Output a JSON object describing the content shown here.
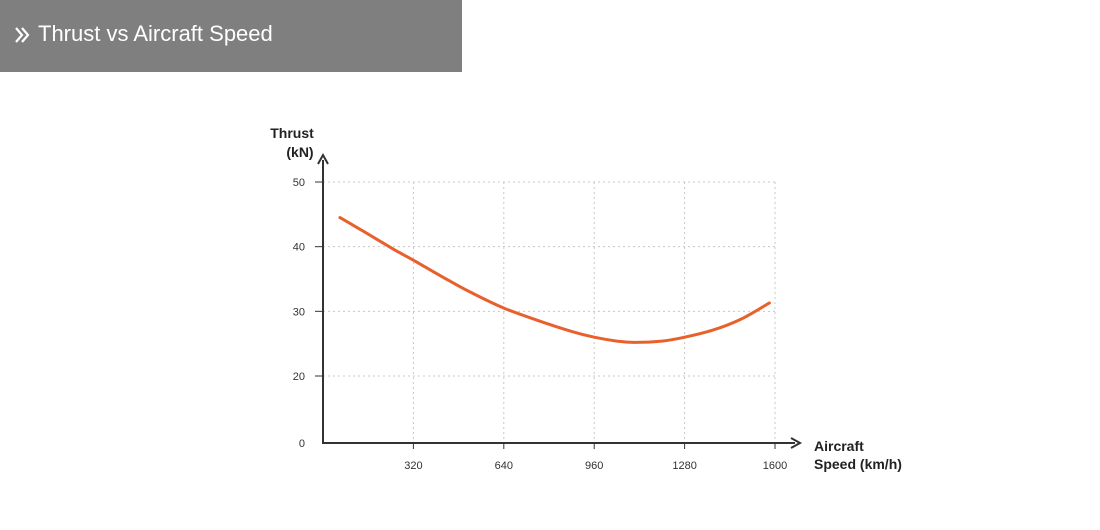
{
  "header": {
    "title": "Thrust vs Aircraft Speed",
    "icon": "double-chevron-right-icon",
    "background_color": "#7f7f7f",
    "text_color": "#ffffff"
  },
  "chart_data": {
    "type": "line",
    "title": "",
    "ylabel_line1": "Thrust",
    "ylabel_line2": "(kN)",
    "xlabel_line1": "Aircraft",
    "xlabel_line2": "Speed (km/h)",
    "xlim": [
      0,
      1600
    ],
    "ylim": [
      0,
      50
    ],
    "x_ticks": [
      320,
      640,
      960,
      1280,
      1600
    ],
    "x_tick_labels": [
      "320",
      "640",
      "960",
      "1280",
      "1600"
    ],
    "y_ticks": [
      0,
      20,
      30,
      40,
      50
    ],
    "y_tick_labels": [
      "0",
      "20",
      "30",
      "40",
      "50"
    ],
    "grid": true,
    "line_color": "#e8602c",
    "series": [
      {
        "x": [
          60,
          150,
          250,
          320,
          420,
          520,
          640,
          760,
          880,
          960,
          1040,
          1100,
          1200,
          1280,
          1380,
          1480,
          1580
        ],
        "y": [
          44.5,
          42.2,
          39.6,
          37.9,
          35.4,
          33.0,
          30.5,
          28.6,
          26.9,
          26.0,
          25.4,
          25.2,
          25.4,
          26.0,
          27.1,
          28.8,
          31.3
        ]
      }
    ]
  }
}
